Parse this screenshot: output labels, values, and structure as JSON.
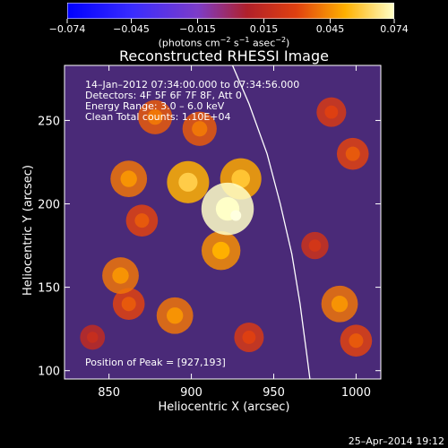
{
  "chart_data": {
    "type": "heatmap",
    "title": "Reconstructed RHESSI Image",
    "xlabel": "Heliocentric X (arcsec)",
    "ylabel": "Heliocentric Y (arcsec)",
    "xlim": [
      823,
      1015
    ],
    "ylim": [
      95,
      283
    ],
    "xticks": [
      850,
      900,
      950,
      1000
    ],
    "yticks": [
      100,
      150,
      200,
      250
    ],
    "colorbar": {
      "ticks": [
        -0.074,
        -0.045,
        -0.015,
        0.015,
        0.045,
        0.074
      ],
      "tick_labels": [
        "−0.074",
        "−0.045",
        "−0.015",
        "0.015",
        "0.045",
        "0.074"
      ],
      "min": -0.074,
      "max": 0.074,
      "unit_text": "(photons cm",
      "unit_exp1": "−2",
      "unit_mid": " s",
      "unit_exp2": "−1",
      "unit_end": " asec",
      "unit_exp3": "−2",
      "unit_close": ")"
    },
    "annotations": [
      "14–Jan–2012 07:34:00.000 to 07:34:56.000",
      "Detectors: 4F 5F 6F 7F 8F, Att 0",
      "Energy Range: 3.0 – 6.0 keV",
      "Clean     Total counts: 1.10E+04"
    ],
    "peak_label": "Position of Peak = [927,193]",
    "peak": [
      927,
      193
    ],
    "sources": [
      {
        "x": 922,
        "y": 197,
        "value": 0.074
      },
      {
        "x": 898,
        "y": 213,
        "value": 0.052
      },
      {
        "x": 918,
        "y": 172,
        "value": 0.045
      },
      {
        "x": 930,
        "y": 215,
        "value": 0.05
      },
      {
        "x": 905,
        "y": 245,
        "value": 0.035
      },
      {
        "x": 862,
        "y": 215,
        "value": 0.04
      },
      {
        "x": 870,
        "y": 190,
        "value": 0.03
      },
      {
        "x": 857,
        "y": 157,
        "value": 0.04
      },
      {
        "x": 862,
        "y": 140,
        "value": 0.03
      },
      {
        "x": 890,
        "y": 133,
        "value": 0.04
      },
      {
        "x": 878,
        "y": 252,
        "value": 0.035
      },
      {
        "x": 935,
        "y": 120,
        "value": 0.025
      },
      {
        "x": 990,
        "y": 140,
        "value": 0.04
      },
      {
        "x": 1000,
        "y": 118,
        "value": 0.03
      },
      {
        "x": 998,
        "y": 230,
        "value": 0.03
      },
      {
        "x": 985,
        "y": 255,
        "value": 0.025
      },
      {
        "x": 975,
        "y": 175,
        "value": 0.02
      },
      {
        "x": 840,
        "y": 120,
        "value": 0.015
      }
    ]
  },
  "footer": "25–Apr–2014 19:12"
}
